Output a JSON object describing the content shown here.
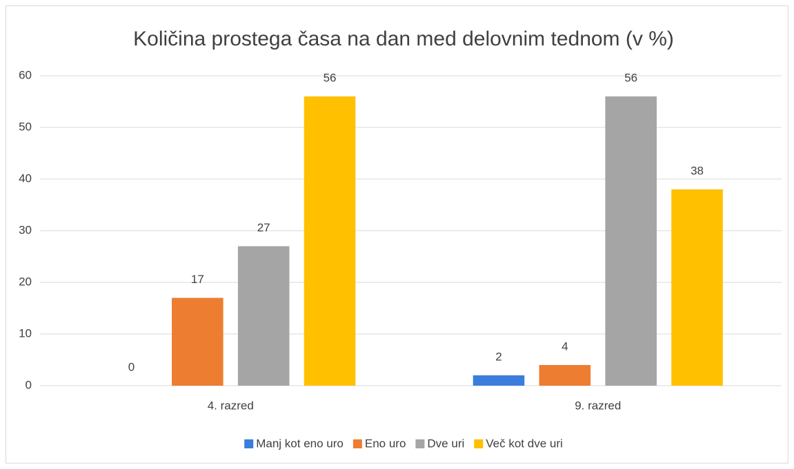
{
  "chart_data": {
    "type": "bar",
    "title": "Količina prostega časa na dan med delovnim tednom (v %)",
    "categories": [
      "4. razred",
      "9. razred"
    ],
    "series": [
      {
        "name": "Manj kot eno uro",
        "color": "#3b7ddd",
        "values": [
          0,
          2
        ]
      },
      {
        "name": "Eno uro",
        "color": "#ed7d31",
        "values": [
          17,
          4
        ]
      },
      {
        "name": "Dve uri",
        "color": "#a5a5a5",
        "values": [
          27,
          56
        ]
      },
      {
        "name": "Več kot dve uri",
        "color": "#ffc000",
        "values": [
          56,
          38
        ]
      }
    ],
    "ylim": [
      0,
      60
    ],
    "yticks": [
      0,
      10,
      20,
      30,
      40,
      50,
      60
    ],
    "grid": true,
    "legend": "bottom"
  }
}
